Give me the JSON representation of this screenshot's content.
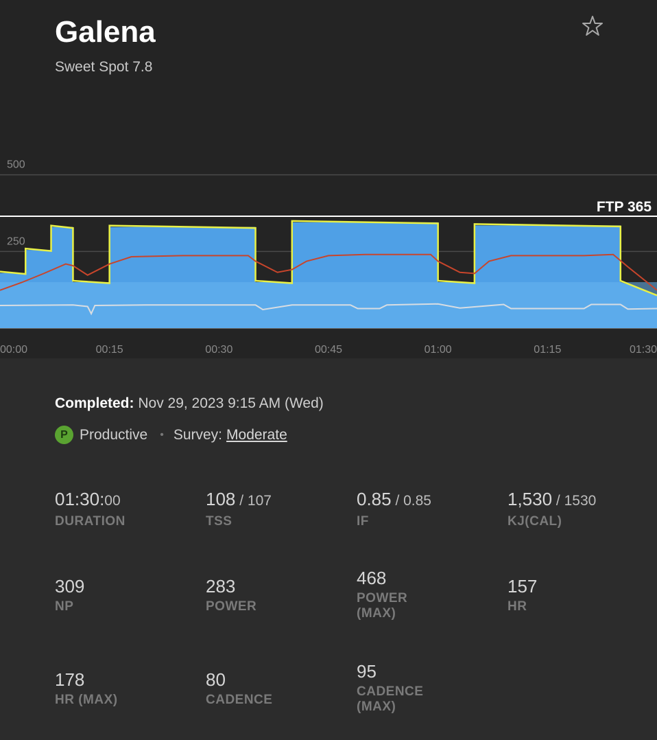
{
  "workout": {
    "title": "Galena",
    "subtitle": "Sweet Spot 7.8",
    "favorite_icon": "star-icon"
  },
  "chart_data": {
    "type": "area",
    "y_ticks": [
      "500",
      "250"
    ],
    "ylim": [
      0,
      600
    ],
    "ftp_label": "FTP 365",
    "ftp_value": 365,
    "x_ticks": [
      "00:00",
      "00:15",
      "00:30",
      "00:45",
      "01:00",
      "01:15",
      "01:30"
    ],
    "x_tick_minutes": [
      0,
      15,
      30,
      45,
      60,
      75,
      90
    ],
    "xlim_minutes": [
      0,
      90
    ],
    "colors": {
      "target_area": "#4fa0e6",
      "power_line": "#e8f046",
      "hr_line": "#c8452b",
      "cadence_line": "#d8dde2",
      "ftp_line": "#ffffff"
    },
    "target_power": {
      "minutes": [
        0,
        3.5,
        3.5,
        7,
        7,
        10,
        10,
        15,
        15,
        35,
        35,
        40,
        40,
        60,
        60,
        65,
        65,
        85,
        85,
        90
      ],
      "watts": [
        180,
        180,
        255,
        255,
        330,
        330,
        150,
        150,
        330,
        330,
        150,
        150,
        345,
        345,
        150,
        150,
        335,
        335,
        150,
        110
      ]
    },
    "heart_rate": {
      "minutes": [
        0,
        3,
        6,
        9,
        10,
        12,
        15,
        18,
        25,
        34,
        35,
        38,
        40,
        42,
        45,
        50,
        59,
        60,
        63,
        65,
        67,
        70,
        80,
        84,
        86,
        90
      ],
      "bpm": [
        108,
        122,
        138,
        155,
        152,
        135,
        155,
        168,
        170,
        170,
        160,
        140,
        145,
        160,
        170,
        172,
        172,
        160,
        140,
        138,
        160,
        170,
        170,
        172,
        150,
        108
      ]
    },
    "cadence": {
      "minutes": [
        0,
        10,
        12,
        12.5,
        13,
        20,
        35,
        36,
        40,
        48,
        49,
        52,
        53,
        60,
        63,
        69,
        70,
        80,
        81,
        85,
        86,
        90
      ],
      "rpm": [
        84,
        85,
        82,
        68,
        84,
        85,
        85,
        76,
        85,
        85,
        78,
        78,
        85,
        87,
        79,
        86,
        78,
        78,
        86,
        86,
        77,
        78
      ]
    }
  },
  "completed": {
    "label": "Completed:",
    "value": "Nov 29, 2023 9:15 AM (Wed)"
  },
  "status": {
    "badge": "P",
    "label": "Productive",
    "survey_label": "Survey:",
    "survey_value": "Moderate"
  },
  "metrics": [
    {
      "main": "01:30:",
      "secondary": "00",
      "label": "DURATION"
    },
    {
      "main": "108",
      "secondary": " / 107",
      "label": "TSS"
    },
    {
      "main": "0.85",
      "secondary": " / 0.85",
      "label": "IF"
    },
    {
      "main": "1,530",
      "secondary": " / 1530",
      "label": "KJ(CAL)"
    },
    {
      "main": "309",
      "secondary": "",
      "label": "NP"
    },
    {
      "main": "283",
      "secondary": "",
      "label": "POWER"
    },
    {
      "main": "468",
      "secondary": "",
      "label": "POWER (MAX)"
    },
    {
      "main": "157",
      "secondary": "",
      "label": "HR"
    },
    {
      "main": "178",
      "secondary": "",
      "label": "HR (MAX)"
    },
    {
      "main": "80",
      "secondary": "",
      "label": "CADENCE"
    },
    {
      "main": "95",
      "secondary": "",
      "label": "CADENCE (MAX)"
    }
  ]
}
